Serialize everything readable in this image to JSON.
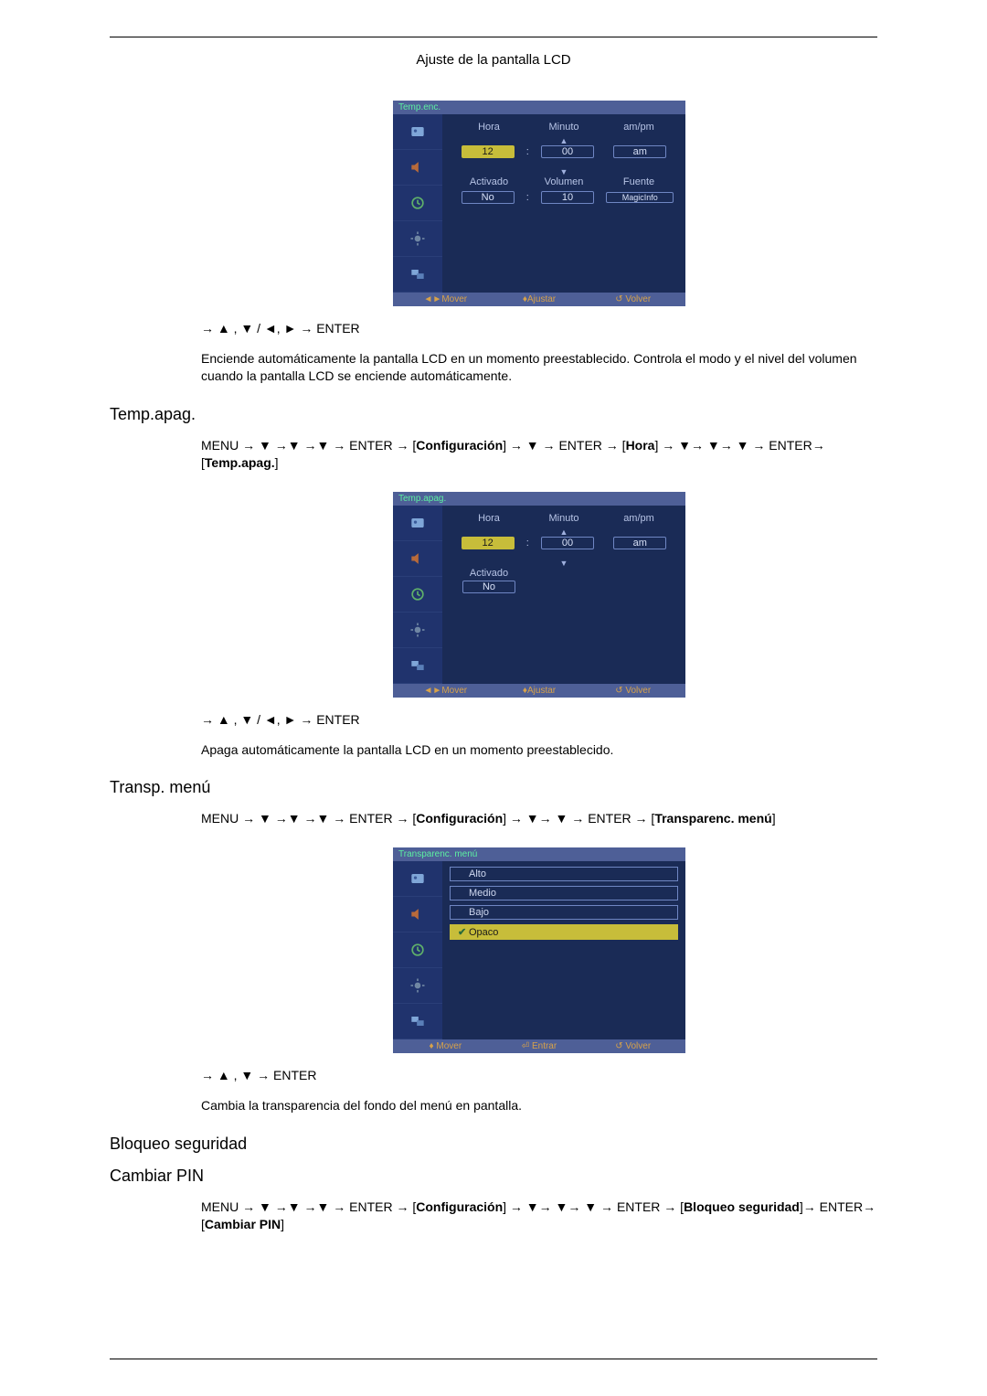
{
  "page": {
    "header": "Ajuste de la pantalla LCD"
  },
  "osd_common": {
    "colors": {
      "bg": "#1a2b56",
      "left": "#20336d",
      "titlebar": "#4e5f97",
      "title_text": "#5df0a2",
      "label": "#b7c4e6",
      "field_border": "#6f86c3",
      "field_text": "#d7e0f7",
      "sel_bg": "#c7bd3a",
      "sel_text": "#1a1a1a",
      "footer_text": "#d7a24a"
    },
    "footer_move": "Mover",
    "footer_adjust": "Ajustar",
    "footer_enter": "Entrar",
    "footer_return": "Volver"
  },
  "osd1": {
    "title": "Temp.enc.",
    "labels": {
      "hora": "Hora",
      "minuto": "Minuto",
      "ampm": "am/pm",
      "activado": "Activado",
      "volumen": "Volumen",
      "fuente": "Fuente"
    },
    "values": {
      "hora": "12",
      "minuto": "00",
      "ampm": "am",
      "activado": "No",
      "volumen": "10",
      "fuente": "MagicInfo",
      "sep": ":"
    }
  },
  "osd2": {
    "title": "Temp.apag.",
    "labels": {
      "hora": "Hora",
      "minuto": "Minuto",
      "ampm": "am/pm",
      "activado": "Activado"
    },
    "values": {
      "hora": "12",
      "minuto": "00",
      "ampm": "am",
      "activado": "No",
      "sep": ":"
    }
  },
  "osd3": {
    "title": "Transparenc. menú",
    "items": [
      {
        "label": "Alto",
        "selected": false
      },
      {
        "label": "Medio",
        "selected": false
      },
      {
        "label": "Bajo",
        "selected": false
      },
      {
        "label": "Opaco",
        "selected": true
      }
    ]
  },
  "section1": {
    "nav_after_osd": "→ ▲ , ▼ / ◄, ► → ENTER",
    "desc": "Enciende automáticamente la pantalla LCD en un momento preestablecido. Controla el modo y el nivel del volumen cuando la pantalla LCD se enciende automáticamente."
  },
  "section2": {
    "title": "Temp.apag.",
    "menu_path_a": "MENU → ▼ →▼ →▼ → ENTER → [",
    "menu_path_b": "Configuración",
    "menu_path_c": "] → ▼ → ENTER → [",
    "menu_path_d": "Hora",
    "menu_path_e": "] → ▼→ ▼→ ▼ → ENTER→ [",
    "menu_path_f": "Temp.apag.",
    "menu_path_g": "]",
    "nav_after_osd": "→ ▲ , ▼ / ◄, ► → ENTER",
    "desc": "Apaga automáticamente la pantalla LCD en un momento preestablecido."
  },
  "section3": {
    "title": "Transp. menú",
    "menu_path_a": "MENU → ▼ →▼ →▼ → ENTER → [",
    "menu_path_b": "Configuración",
    "menu_path_c": "] → ▼→ ▼ → ENTER → [",
    "menu_path_d": "Transparenc. menú",
    "menu_path_e": "]",
    "nav_after_osd": "→ ▲ , ▼ → ENTER",
    "desc": "Cambia la transparencia del fondo del menú en pantalla."
  },
  "section4": {
    "title1": "Bloqueo seguridad",
    "title2": "Cambiar PIN",
    "menu_a": "MENU  →  ▼  →▼  →▼  →  ENTER  →  [",
    "menu_b": "Configuración",
    "menu_c": "]  →  ▼→  ▼→  ▼  →  ENTER  → [",
    "menu_d": "Bloqueo seguridad",
    "menu_e": "]→ ENTER→ [",
    "menu_f": "Cambiar PIN",
    "menu_g": "]"
  }
}
